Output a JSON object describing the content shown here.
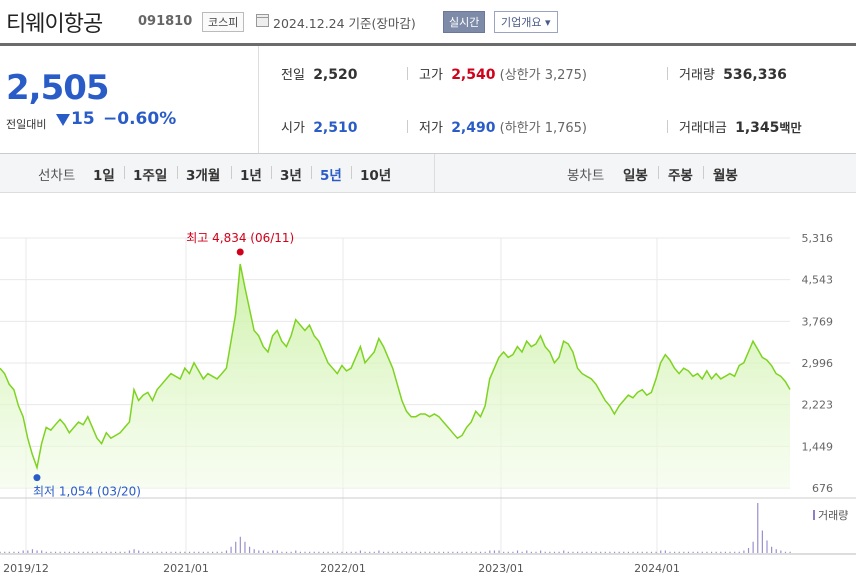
{
  "header": {
    "name": "티웨이항공",
    "code": "091810",
    "market": "코스피",
    "date_text": "2024.12.24  기준(장마감)",
    "realtime_btn": "실시간",
    "corp_btn": "기업개요 ▾"
  },
  "price": {
    "current": "2,505",
    "change_label": "전일대비",
    "change_value": "15",
    "change_pct": "−0.60%",
    "down_color": "#2a5cc7"
  },
  "stats": {
    "prev_close": {
      "label": "전일",
      "value": "2,520"
    },
    "high": {
      "label": "고가",
      "value": "2,540",
      "extra": "(상한가 3,275)"
    },
    "volume": {
      "label": "거래량",
      "value": "536,336"
    },
    "open": {
      "label": "시가",
      "value": "2,510"
    },
    "low": {
      "label": "저가",
      "value": "2,490",
      "extra": "(하한가 1,765)"
    },
    "amount": {
      "label": "거래대금",
      "value": "1,345",
      "unit": "백만"
    }
  },
  "tabs": {
    "line_label": "선차트",
    "line": [
      "1일",
      "1주일",
      "3개월",
      "1년",
      "3년",
      "5년",
      "10년"
    ],
    "active": "5년",
    "candle_label": "봉차트",
    "candle": [
      "일봉",
      "주봉",
      "월봉"
    ]
  },
  "chart_data": {
    "type": "area",
    "y_ticks": [
      "5,316",
      "4,543",
      "3,769",
      "2,996",
      "2,223",
      "1,449",
      "676"
    ],
    "ylim": [
      676,
      5316
    ],
    "x_ticks": [
      "2019/12",
      "2021/01",
      "2022/01",
      "2023/01",
      "2024/01"
    ],
    "max_annotation": "최고 4,834 (06/11)",
    "min_annotation": "최저 1,054 (03/20)",
    "volume_label": "거래량",
    "line_color": "#7ed321",
    "series": [
      {
        "values": [
          2900,
          2800,
          2600,
          2500,
          2200,
          2000,
          1600,
          1300,
          1054,
          1500,
          1800,
          1750,
          1850,
          1950,
          1850,
          1700,
          1800,
          1900,
          1850,
          2000,
          1800,
          1600,
          1500,
          1700,
          1600,
          1650,
          1700,
          1800,
          1900,
          2500,
          2300,
          2400,
          2450,
          2300,
          2500,
          2600,
          2700,
          2800,
          2750,
          2700,
          2900,
          2800,
          3000,
          2850,
          2700,
          2800,
          2750,
          2700,
          2800,
          2900,
          3400,
          3900,
          4834,
          4400,
          4000,
          3600,
          3500,
          3300,
          3200,
          3500,
          3600,
          3400,
          3300,
          3500,
          3800,
          3700,
          3600,
          3700,
          3500,
          3400,
          3200,
          3000,
          2900,
          2800,
          2950,
          2850,
          2900,
          3100,
          3300,
          3000,
          3100,
          3200,
          3450,
          3300,
          3100,
          2900,
          2600,
          2300,
          2100,
          2000,
          2000,
          2050,
          2050,
          2000,
          2050,
          2000,
          1900,
          1800,
          1700,
          1600,
          1650,
          1800,
          1900,
          2100,
          2000,
          2200,
          2700,
          2900,
          3100,
          3200,
          3100,
          3150,
          3300,
          3200,
          3400,
          3300,
          3350,
          3500,
          3300,
          3200,
          3000,
          3100,
          3400,
          3350,
          3200,
          2900,
          2800,
          2750,
          2700,
          2600,
          2450,
          2300,
          2200,
          2050,
          2200,
          2300,
          2400,
          2350,
          2450,
          2500,
          2400,
          2450,
          2700,
          3000,
          3150,
          3050,
          2900,
          2800,
          2900,
          2850,
          2750,
          2800,
          2700,
          2850,
          2700,
          2800,
          2700,
          2750,
          2800,
          2750,
          2950,
          3000,
          3200,
          3400,
          3250,
          3100,
          3050,
          2950,
          2800,
          2750,
          2650,
          2505
        ]
      }
    ],
    "volume": [
      1,
      1,
      1,
      1,
      1,
      2,
      2,
      3,
      2,
      2,
      1,
      1,
      1,
      1,
      1,
      1,
      1,
      1,
      1,
      1,
      1,
      1,
      1,
      1,
      1,
      1,
      1,
      1,
      2,
      3,
      2,
      1,
      1,
      1,
      1,
      1,
      1,
      1,
      1,
      1,
      1,
      1,
      1,
      1,
      1,
      1,
      1,
      1,
      1,
      2,
      5,
      9,
      13,
      9,
      5,
      3,
      2,
      2,
      1,
      2,
      2,
      1,
      1,
      1,
      2,
      1,
      1,
      1,
      1,
      1,
      1,
      1,
      1,
      1,
      1,
      1,
      1,
      1,
      2,
      1,
      1,
      1,
      2,
      1,
      1,
      1,
      1,
      1,
      1,
      1,
      1,
      1,
      1,
      1,
      1,
      1,
      1,
      1,
      1,
      1,
      1,
      1,
      1,
      1,
      1,
      1,
      2,
      2,
      2,
      1,
      1,
      1,
      2,
      1,
      2,
      1,
      1,
      2,
      1,
      1,
      1,
      1,
      2,
      1,
      1,
      1,
      1,
      1,
      1,
      1,
      1,
      1,
      1,
      1,
      1,
      1,
      1,
      1,
      1,
      1,
      1,
      1,
      1,
      2,
      2,
      1,
      1,
      1,
      1,
      1,
      1,
      1,
      1,
      1,
      1,
      1,
      1,
      1,
      1,
      1,
      1,
      2,
      4,
      9,
      40,
      18,
      10,
      5,
      3,
      2,
      1,
      1
    ]
  }
}
